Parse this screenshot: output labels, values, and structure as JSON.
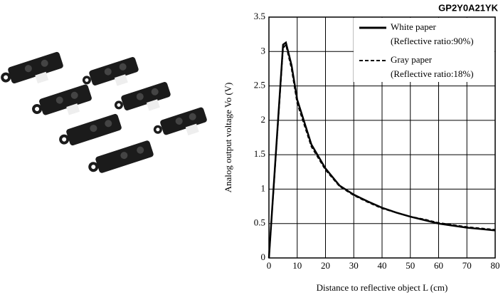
{
  "chart_data": {
    "type": "line",
    "title": "GP2Y0A21YK",
    "x_label": "Distance to reflective object L (cm)",
    "y_label": "Analog output voltage Vo (V)",
    "x": [
      0,
      5,
      6,
      8,
      10,
      15,
      20,
      25,
      30,
      35,
      40,
      45,
      50,
      55,
      60,
      65,
      70,
      75,
      80
    ],
    "series": [
      {
        "name": "White paper",
        "legend_note": "(Reflective ratio:90%)",
        "color": "#000000",
        "dash": "solid",
        "values": [
          0,
          3.1,
          3.13,
          2.8,
          2.3,
          1.65,
          1.3,
          1.05,
          0.92,
          0.82,
          0.73,
          0.66,
          0.6,
          0.55,
          0.5,
          0.47,
          0.44,
          0.42,
          0.4
        ]
      },
      {
        "name": "Gray paper",
        "legend_note": "(Reflective ratio:18%)",
        "color": "#000000",
        "dash": "dashed",
        "values": [
          0,
          3.05,
          3.1,
          2.75,
          2.25,
          1.62,
          1.28,
          1.04,
          0.91,
          0.81,
          0.72,
          0.66,
          0.6,
          0.56,
          0.51,
          0.48,
          0.45,
          0.43,
          0.41
        ]
      }
    ],
    "xlim": [
      0,
      80
    ],
    "xticks": [
      0,
      10,
      20,
      30,
      40,
      50,
      60,
      70,
      80
    ],
    "ylim": [
      0,
      3.5
    ],
    "yticks": [
      0,
      0.5,
      1,
      1.5,
      2,
      2.5,
      3,
      3.5
    ],
    "grid": true,
    "legend": "upper right"
  }
}
